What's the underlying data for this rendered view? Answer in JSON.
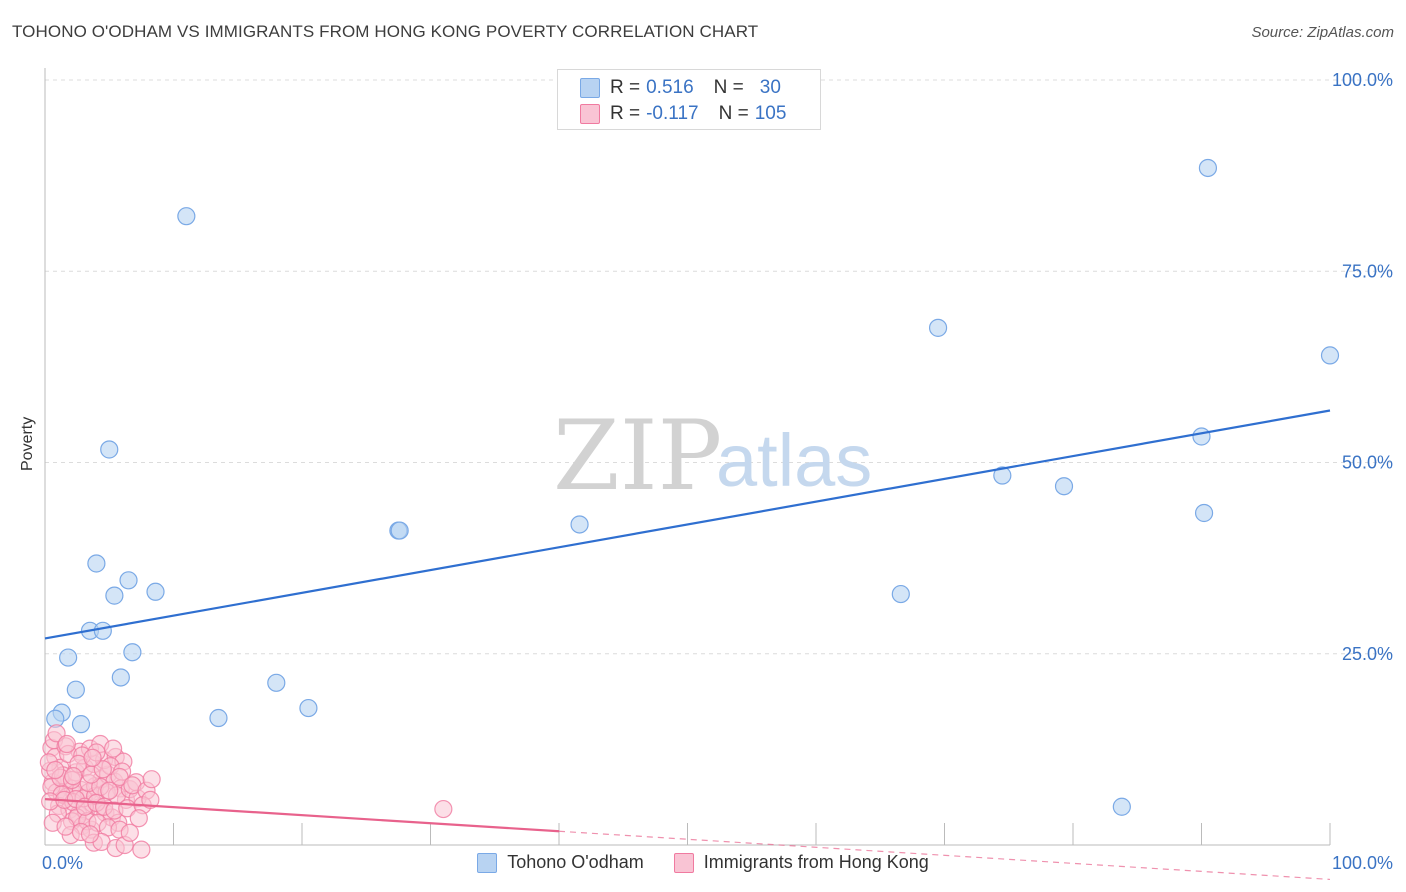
{
  "title": "TOHONO O'ODHAM VS IMMIGRANTS FROM HONG KONG POVERTY CORRELATION CHART",
  "source": "Source: ZipAtlas.com",
  "watermark": {
    "zip": "ZIP",
    "atlas": "atlas"
  },
  "legend_top": {
    "rows": [
      {
        "r_label": "R =",
        "r_value": "0.516",
        "n_label": "N =",
        "n_value": "30"
      },
      {
        "r_label": "R =",
        "r_value": "-0.117",
        "n_label": "N =",
        "n_value": "105"
      }
    ]
  },
  "chart_data": {
    "type": "scatter",
    "title": "TOHONO O'ODHAM VS IMMIGRANTS FROM HONG KONG POVERTY CORRELATION CHART",
    "xlabel": "",
    "ylabel": "Poverty",
    "xlim": [
      0,
      100
    ],
    "ylim": [
      0,
      100
    ],
    "x_tick_labels": [
      "0.0%",
      "100.0%"
    ],
    "y_tick_labels": [
      "100.0%",
      "75.0%",
      "50.0%",
      "25.0%"
    ],
    "y_ticks": [
      100,
      75,
      50,
      25
    ],
    "grid": true,
    "legend_position": "bottom-center",
    "series": [
      {
        "name": "Tohono O'odham",
        "color": "#7aa9e6",
        "fill": "#b8d3f2",
        "trend_color": "#2f6fd0",
        "r": 0.516,
        "n": 30,
        "trend": {
          "x0": 0,
          "y0": 27.0,
          "x1": 100,
          "y1": 56.8
        },
        "points": [
          [
            11,
            82.2
          ],
          [
            90.5,
            88.5
          ],
          [
            69.5,
            67.6
          ],
          [
            100,
            64.0
          ],
          [
            5,
            51.7
          ],
          [
            90,
            53.4
          ],
          [
            74.5,
            48.3
          ],
          [
            79.3,
            46.9
          ],
          [
            90.2,
            43.4
          ],
          [
            27.5,
            41.1
          ],
          [
            27.6,
            41.1
          ],
          [
            41.6,
            41.9
          ],
          [
            4,
            36.8
          ],
          [
            6.5,
            34.6
          ],
          [
            8.6,
            33.1
          ],
          [
            5.4,
            32.6
          ],
          [
            66.6,
            32.8
          ],
          [
            3.5,
            28.0
          ],
          [
            4.5,
            28.0
          ],
          [
            6.8,
            25.2
          ],
          [
            1.8,
            24.5
          ],
          [
            5.9,
            21.9
          ],
          [
            2.4,
            20.3
          ],
          [
            18,
            21.2
          ],
          [
            20.5,
            17.9
          ],
          [
            1.3,
            17.3
          ],
          [
            0.8,
            16.5
          ],
          [
            2.8,
            15.8
          ],
          [
            13.5,
            16.6
          ],
          [
            83.8,
            5.0
          ]
        ]
      },
      {
        "name": "Immigrants from Hong Kong",
        "color": "#f07aa0",
        "fill": "#f9c4d4",
        "trend_color": "#e8628c",
        "r": -0.117,
        "n": 105,
        "trend": {
          "x0": 0,
          "y0": 6.0,
          "x1": 40,
          "y1": 1.8
        },
        "trend_dashed": {
          "x0": 40,
          "y0": 1.8,
          "x1": 100,
          "y1": -4.5
        },
        "points": [
          [
            0.5,
            12.7
          ],
          [
            0.8,
            11.5
          ],
          [
            1.2,
            10.1
          ],
          [
            0.6,
            8.2
          ],
          [
            1.5,
            7.9
          ],
          [
            2.0,
            7.4
          ],
          [
            0.9,
            6.9
          ],
          [
            1.7,
            6.3
          ],
          [
            2.3,
            6.7
          ],
          [
            2.8,
            7.2
          ],
          [
            3.4,
            6.9
          ],
          [
            3.9,
            7.7
          ],
          [
            4.4,
            8.6
          ],
          [
            4.9,
            9.2
          ],
          [
            5.4,
            8.3
          ],
          [
            5.9,
            7.4
          ],
          [
            6.3,
            5.9
          ],
          [
            1.1,
            5.1
          ],
          [
            1.9,
            4.6
          ],
          [
            2.6,
            4.0
          ],
          [
            3.2,
            4.4
          ],
          [
            3.7,
            5.4
          ],
          [
            4.2,
            4.9
          ],
          [
            4.7,
            4.2
          ],
          [
            5.2,
            3.6
          ],
          [
            5.7,
            2.9
          ],
          [
            2.1,
            3.1
          ],
          [
            2.9,
            2.5
          ],
          [
            3.6,
            2.0
          ],
          [
            0.4,
            9.7
          ],
          [
            1.4,
            9.1
          ],
          [
            2.4,
            9.5
          ],
          [
            3.1,
            10.1
          ],
          [
            3.8,
            10.6
          ],
          [
            4.6,
            11.1
          ],
          [
            5.5,
            11.5
          ],
          [
            6.1,
            10.9
          ],
          [
            0.7,
            13.7
          ],
          [
            1.6,
            12.9
          ],
          [
            2.7,
            12.2
          ],
          [
            3.5,
            12.6
          ],
          [
            4.3,
            13.2
          ],
          [
            5.3,
            12.6
          ],
          [
            0.5,
            7.6
          ],
          [
            1.3,
            6.6
          ],
          [
            2.2,
            5.6
          ],
          [
            3.0,
            6.1
          ],
          [
            3.9,
            6.4
          ],
          [
            4.8,
            6.9
          ],
          [
            5.6,
            6.5
          ],
          [
            6.6,
            7.3
          ],
          [
            7.2,
            6.1
          ],
          [
            1.0,
            4.1
          ],
          [
            2.5,
            3.6
          ],
          [
            3.3,
            3.1
          ],
          [
            4.1,
            2.9
          ],
          [
            4.9,
            2.3
          ],
          [
            5.8,
            2.0
          ],
          [
            2.0,
            1.3
          ],
          [
            3.8,
            0.3
          ],
          [
            4.4,
            0.4
          ],
          [
            5.5,
            -0.4
          ],
          [
            6.2,
            0.0
          ],
          [
            7.5,
            -0.6
          ],
          [
            1.8,
            11.9
          ],
          [
            2.9,
            11.7
          ],
          [
            4.0,
            12.1
          ],
          [
            5.1,
            10.3
          ],
          [
            6.0,
            9.6
          ],
          [
            7.1,
            8.2
          ],
          [
            0.3,
            10.8
          ],
          [
            1.2,
            8.8
          ],
          [
            2.1,
            8.5
          ],
          [
            3.4,
            8.1
          ],
          [
            4.3,
            7.6
          ],
          [
            5.0,
            7.1
          ],
          [
            0.9,
            14.6
          ],
          [
            1.7,
            13.2
          ],
          [
            2.6,
            10.6
          ],
          [
            3.6,
            9.2
          ],
          [
            4.5,
            9.9
          ],
          [
            5.8,
            8.9
          ],
          [
            6.8,
            7.8
          ],
          [
            7.9,
            7.1
          ],
          [
            0.4,
            5.7
          ],
          [
            1.5,
            5.9
          ],
          [
            2.4,
            6.0
          ],
          [
            3.1,
            5.0
          ],
          [
            4.0,
            5.5
          ],
          [
            4.6,
            5.0
          ],
          [
            5.4,
            4.5
          ],
          [
            6.4,
            4.8
          ],
          [
            7.6,
            5.2
          ],
          [
            0.6,
            2.9
          ],
          [
            1.6,
            2.4
          ],
          [
            2.8,
            1.7
          ],
          [
            3.5,
            1.4
          ],
          [
            6.6,
            1.6
          ],
          [
            7.3,
            3.5
          ],
          [
            8.2,
            5.9
          ],
          [
            31.0,
            4.7
          ],
          [
            8.3,
            8.6
          ],
          [
            0.8,
            9.8
          ],
          [
            2.2,
            9.0
          ],
          [
            3.7,
            11.4
          ]
        ]
      }
    ]
  }
}
